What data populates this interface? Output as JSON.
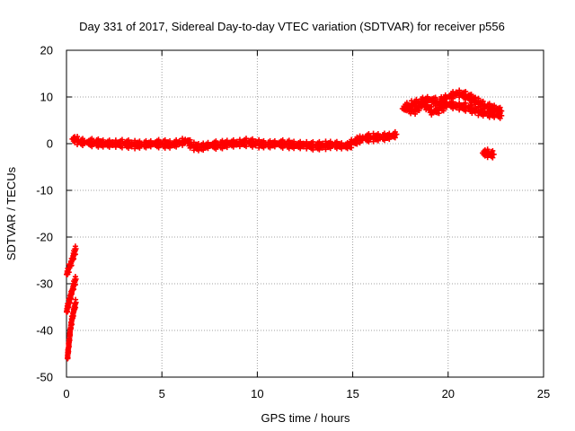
{
  "chart_data": {
    "type": "scatter",
    "title": "Day 331 of 2017, Sidereal Day-to-day VTEC variation (SDTVAR) for receiver p556",
    "xlabel": "GPS time / hours",
    "ylabel": "SDTVAR / TECUs",
    "xlim": [
      0,
      25
    ],
    "ylim": [
      -50,
      20
    ],
    "xticks": [
      0,
      5,
      10,
      15,
      20,
      25
    ],
    "yticks": [
      -50,
      -40,
      -30,
      -20,
      -10,
      0,
      10,
      20
    ],
    "grid": true,
    "marker": "+",
    "colors": {
      "series": "#ff0000",
      "grid": "#a0a0a0",
      "axis": "#000000"
    },
    "series": [
      {
        "name": "SDTVAR",
        "segments": [
          {
            "x": [
              0.0,
              0.1,
              0.2,
              0.3,
              0.4,
              0.5
            ],
            "y": [
              -28.0,
              -27.0,
              -26.0,
              -25.0,
              -23.5,
              -22.5
            ]
          },
          {
            "x": [
              0.0,
              0.1,
              0.2,
              0.3,
              0.4,
              0.5
            ],
            "y": [
              -36.0,
              -34.5,
              -33.0,
              -31.5,
              -30.0,
              -29.0
            ]
          },
          {
            "x": [
              0.05,
              0.1,
              0.15,
              0.2,
              0.25,
              0.3,
              0.35,
              0.4,
              0.45,
              0.5
            ],
            "y": [
              -46.0,
              -44.0,
              -42.0,
              -40.0,
              -38.5,
              -37.5,
              -36.5,
              -35.5,
              -34.5,
              -34.0
            ]
          },
          {
            "x": [
              0.3,
              0.5,
              0.7,
              1.0,
              1.5,
              2.0,
              2.5,
              3.0,
              3.5,
              4.0,
              4.5,
              5.0,
              5.5,
              6.0,
              6.3,
              6.6,
              7.0,
              7.5,
              8.0,
              8.5,
              9.0,
              9.5,
              10.0,
              10.5,
              11.0,
              11.5,
              12.0,
              12.5,
              13.0,
              13.5,
              14.0,
              14.5,
              14.8,
              15.0,
              15.3,
              15.6,
              16.0,
              16.5,
              17.0,
              17.3
            ],
            "y": [
              1.0,
              0.8,
              0.4,
              0.3,
              0.2,
              0.0,
              0.0,
              0.0,
              -0.2,
              -0.2,
              0.0,
              0.0,
              -0.2,
              0.3,
              0.6,
              -0.5,
              -0.8,
              -0.3,
              -0.3,
              0.0,
              0.1,
              0.3,
              0.0,
              -0.2,
              0.0,
              -0.1,
              -0.3,
              -0.3,
              -0.5,
              -0.4,
              -0.2,
              -0.5,
              -0.4,
              0.2,
              0.8,
              1.2,
              1.3,
              1.4,
              1.6,
              2.0
            ]
          },
          {
            "x": [
              17.6,
              18.0,
              18.5,
              19.0,
              19.5,
              20.0,
              20.5,
              21.0,
              21.5,
              22.0,
              22.5,
              22.8
            ],
            "y": [
              7.5,
              8.2,
              9.0,
              9.5,
              8.8,
              10.0,
              10.8,
              10.2,
              9.0,
              8.0,
              7.5,
              7.0
            ]
          },
          {
            "x": [
              17.8,
              18.2,
              18.7,
              19.2,
              19.6,
              20.0,
              20.5,
              21.0,
              21.5,
              22.0,
              22.5,
              22.8
            ],
            "y": [
              7.8,
              7.0,
              8.5,
              6.8,
              7.5,
              8.5,
              8.0,
              7.8,
              7.0,
              6.5,
              6.2,
              6.0
            ]
          },
          {
            "x": [
              21.8,
              22.0,
              22.2,
              22.4
            ],
            "y": [
              -2.0,
              -2.0,
              -2.2,
              -2.3
            ]
          }
        ]
      }
    ]
  }
}
